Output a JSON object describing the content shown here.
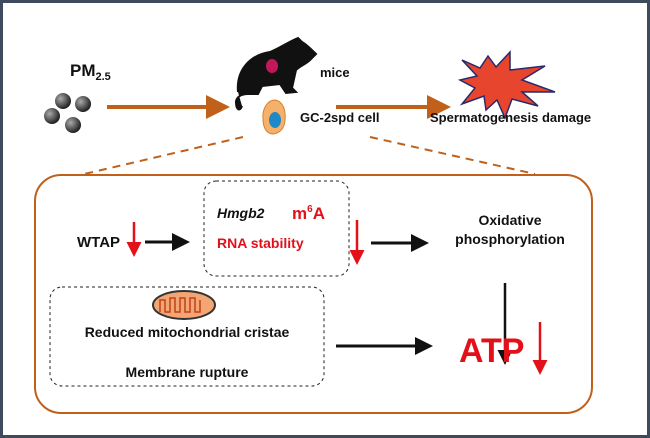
{
  "colors": {
    "orange": "#c0601a",
    "red": "#e3101a",
    "black": "#111111",
    "frame": "#3d4b5c",
    "burst": "#e8452f"
  },
  "top": {
    "pm_label": "PM",
    "pm_sub": "2.5",
    "mice_label": "mice",
    "cell_label": "GC-2spd cell",
    "damage_label": "Spermatogenesis damage"
  },
  "mechanism": {
    "wtap": "WTAP",
    "gene": "Hmgb2",
    "m6a_m": "m",
    "m6a_sup": "6",
    "m6a_a": "A",
    "rna_stability": "RNA stability",
    "oxphos_line1": "Oxidative",
    "oxphos_line2": "phosphorylation",
    "cristae": "Reduced mitochondrial cristae",
    "membrane": "Membrane rupture",
    "atp": "ATP"
  },
  "icons": [
    "particles-icon",
    "mouse-icon",
    "cell-icon",
    "burst-icon",
    "mitochondrion-icon",
    "down-arrow-icon"
  ]
}
